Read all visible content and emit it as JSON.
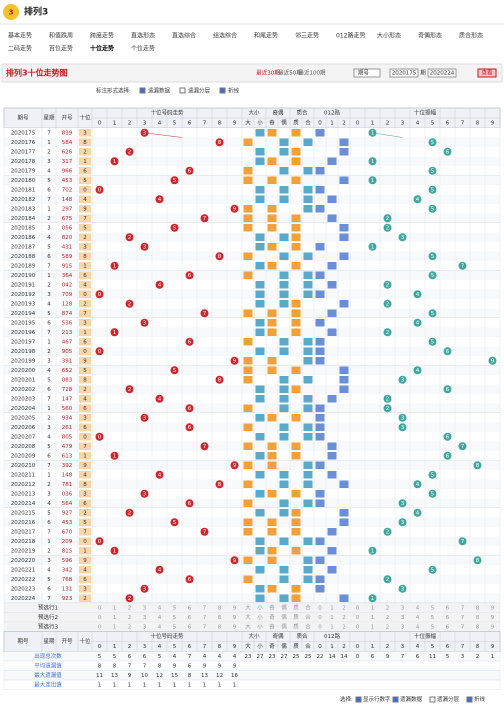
{
  "header": {
    "logo": "排列3"
  },
  "nav": [
    "基本走势",
    "和值跌周",
    "跨度走势",
    "直选形态",
    "直选综合",
    "组选综合",
    "和尾走势",
    "邻三走势",
    "012路走势",
    "大小形态",
    "奇偶形态",
    "质合形态",
    "二码走势",
    "百位走势",
    "十位走势",
    "个位走势"
  ],
  "active_nav": 14,
  "title": "排列3十位走势图",
  "controls": {
    "recent": [
      "最近30期",
      "最近50期",
      "最近100期"
    ],
    "select": "期号",
    "from": "2020175",
    "sep": "期",
    "to": "2020224",
    "button": "查看"
  },
  "filter": {
    "label": "标注形式选择:",
    "options": [
      "遗漏数据",
      "遗漏分层",
      "折线"
    ]
  },
  "table": {
    "headers": {
      "period": "期号",
      "week": "星期",
      "number": "开号",
      "tens": "十位",
      "trend": "十位号码走势",
      "digits": [
        0,
        1,
        2,
        3,
        4,
        5,
        6,
        7,
        8,
        9
      ],
      "shape": [
        "大小",
        "奇偶",
        "质合"
      ],
      "shape_sub": [
        "大",
        "小",
        "奇",
        "偶",
        "质",
        "合"
      ],
      "r012": "012路",
      "r012_sub": [
        0,
        1,
        2
      ],
      "amp": "十位振幅"
    },
    "rows": [
      [
        "2020175",
        "7",
        "839",
        3,
        1
      ],
      [
        "2020176",
        "1",
        "584",
        8,
        5
      ],
      [
        "2020177",
        "2",
        "626",
        2,
        6
      ],
      [
        "2020178",
        "3",
        "317",
        1,
        1
      ],
      [
        "2020179",
        "4",
        "966",
        6,
        5
      ],
      [
        "2020180",
        "5",
        "453",
        5,
        1
      ],
      [
        "2020181",
        "6",
        "702",
        0,
        5
      ],
      [
        "2020182",
        "7",
        "148",
        4,
        4
      ],
      [
        "2020183",
        "1",
        "297",
        9,
        5
      ],
      [
        "2020184",
        "2",
        "675",
        7,
        2
      ],
      [
        "2020185",
        "3",
        "056",
        5,
        2
      ],
      [
        "2020186",
        "4",
        "820",
        2,
        3
      ],
      [
        "2020187",
        "5",
        "431",
        3,
        1
      ],
      [
        "2020188",
        "6",
        "589",
        8,
        5
      ],
      [
        "2020189",
        "7",
        "915",
        1,
        7
      ],
      [
        "2020190",
        "1",
        "364",
        6,
        5
      ],
      [
        "2020191",
        "2",
        "042",
        4,
        2
      ],
      [
        "2020192",
        "3",
        "709",
        0,
        4
      ],
      [
        "2020193",
        "4",
        "128",
        2,
        2
      ],
      [
        "2020194",
        "5",
        "874",
        7,
        5
      ],
      [
        "2020195",
        "6",
        "536",
        3,
        4
      ],
      [
        "2020196",
        "7",
        "213",
        1,
        2
      ],
      [
        "2020197",
        "1",
        "467",
        6,
        5
      ],
      [
        "2020198",
        "2",
        "905",
        0,
        6
      ],
      [
        "2020199",
        "3",
        "391",
        9,
        9
      ],
      [
        "2020200",
        "4",
        "652",
        5,
        4
      ],
      [
        "2020201",
        "5",
        "083",
        8,
        3
      ],
      [
        "2020202",
        "6",
        "728",
        2,
        6
      ],
      [
        "2020203",
        "7",
        "147",
        4,
        2
      ],
      [
        "2020204",
        "1",
        "560",
        6,
        2
      ],
      [
        "2020205",
        "2",
        "934",
        3,
        3
      ],
      [
        "2020206",
        "3",
        "261",
        6,
        3
      ],
      [
        "2020207",
        "4",
        "805",
        0,
        6
      ],
      [
        "2020208",
        "5",
        "479",
        7,
        7
      ],
      [
        "2020209",
        "6",
        "613",
        1,
        6
      ],
      [
        "2020210",
        "7",
        "392",
        9,
        8
      ],
      [
        "2020211",
        "1",
        "148",
        4,
        5
      ],
      [
        "2020212",
        "2",
        "781",
        8,
        4
      ],
      [
        "2020213",
        "3",
        "036",
        3,
        5
      ],
      [
        "2020214",
        "4",
        "564",
        6,
        3
      ],
      [
        "2020215",
        "5",
        "927",
        2,
        4
      ],
      [
        "2020216",
        "6",
        "453",
        5,
        3
      ],
      [
        "2020217",
        "7",
        "670",
        7,
        2
      ],
      [
        "2020218",
        "1",
        "209",
        0,
        7
      ],
      [
        "2020219",
        "2",
        "815",
        1,
        1
      ],
      [
        "2020220",
        "3",
        "596",
        9,
        8
      ],
      [
        "2020221",
        "4",
        "342",
        4,
        5
      ],
      [
        "2020222",
        "5",
        "768",
        6,
        2
      ],
      [
        "2020223",
        "6",
        "131",
        3,
        3
      ],
      [
        "2020224",
        "7",
        "923",
        2,
        1
      ]
    ],
    "preselect": [
      "预选行1",
      "预选行2",
      "预选行3"
    ],
    "stats": [
      {
        "label": "出现总次数",
        "trend": [
          5,
          5,
          6,
          6,
          5,
          4,
          7,
          4,
          4,
          4
        ],
        "shape": [
          23,
          27,
          23,
          27,
          25,
          25
        ],
        "r012": [
          22,
          14,
          14
        ],
        "amp": [
          0,
          6,
          9,
          7,
          6,
          11,
          5,
          3,
          2,
          1
        ]
      },
      {
        "label": "平均遗漏值",
        "trend": [
          8,
          8,
          7,
          7,
          8,
          9,
          6,
          9,
          9,
          9
        ]
      },
      {
        "label": "最大遗漏值",
        "trend": [
          11,
          13,
          9,
          10,
          12,
          15,
          8,
          13,
          12,
          16
        ]
      },
      {
        "label": "最大连出值",
        "trend": [
          1,
          1,
          1,
          1,
          1,
          1,
          1,
          1,
          1,
          1
        ]
      }
    ]
  },
  "footer": {
    "label": "选择:",
    "options": [
      "显示行数字",
      "遗漏数据",
      "遗漏分层",
      "折线"
    ]
  }
}
